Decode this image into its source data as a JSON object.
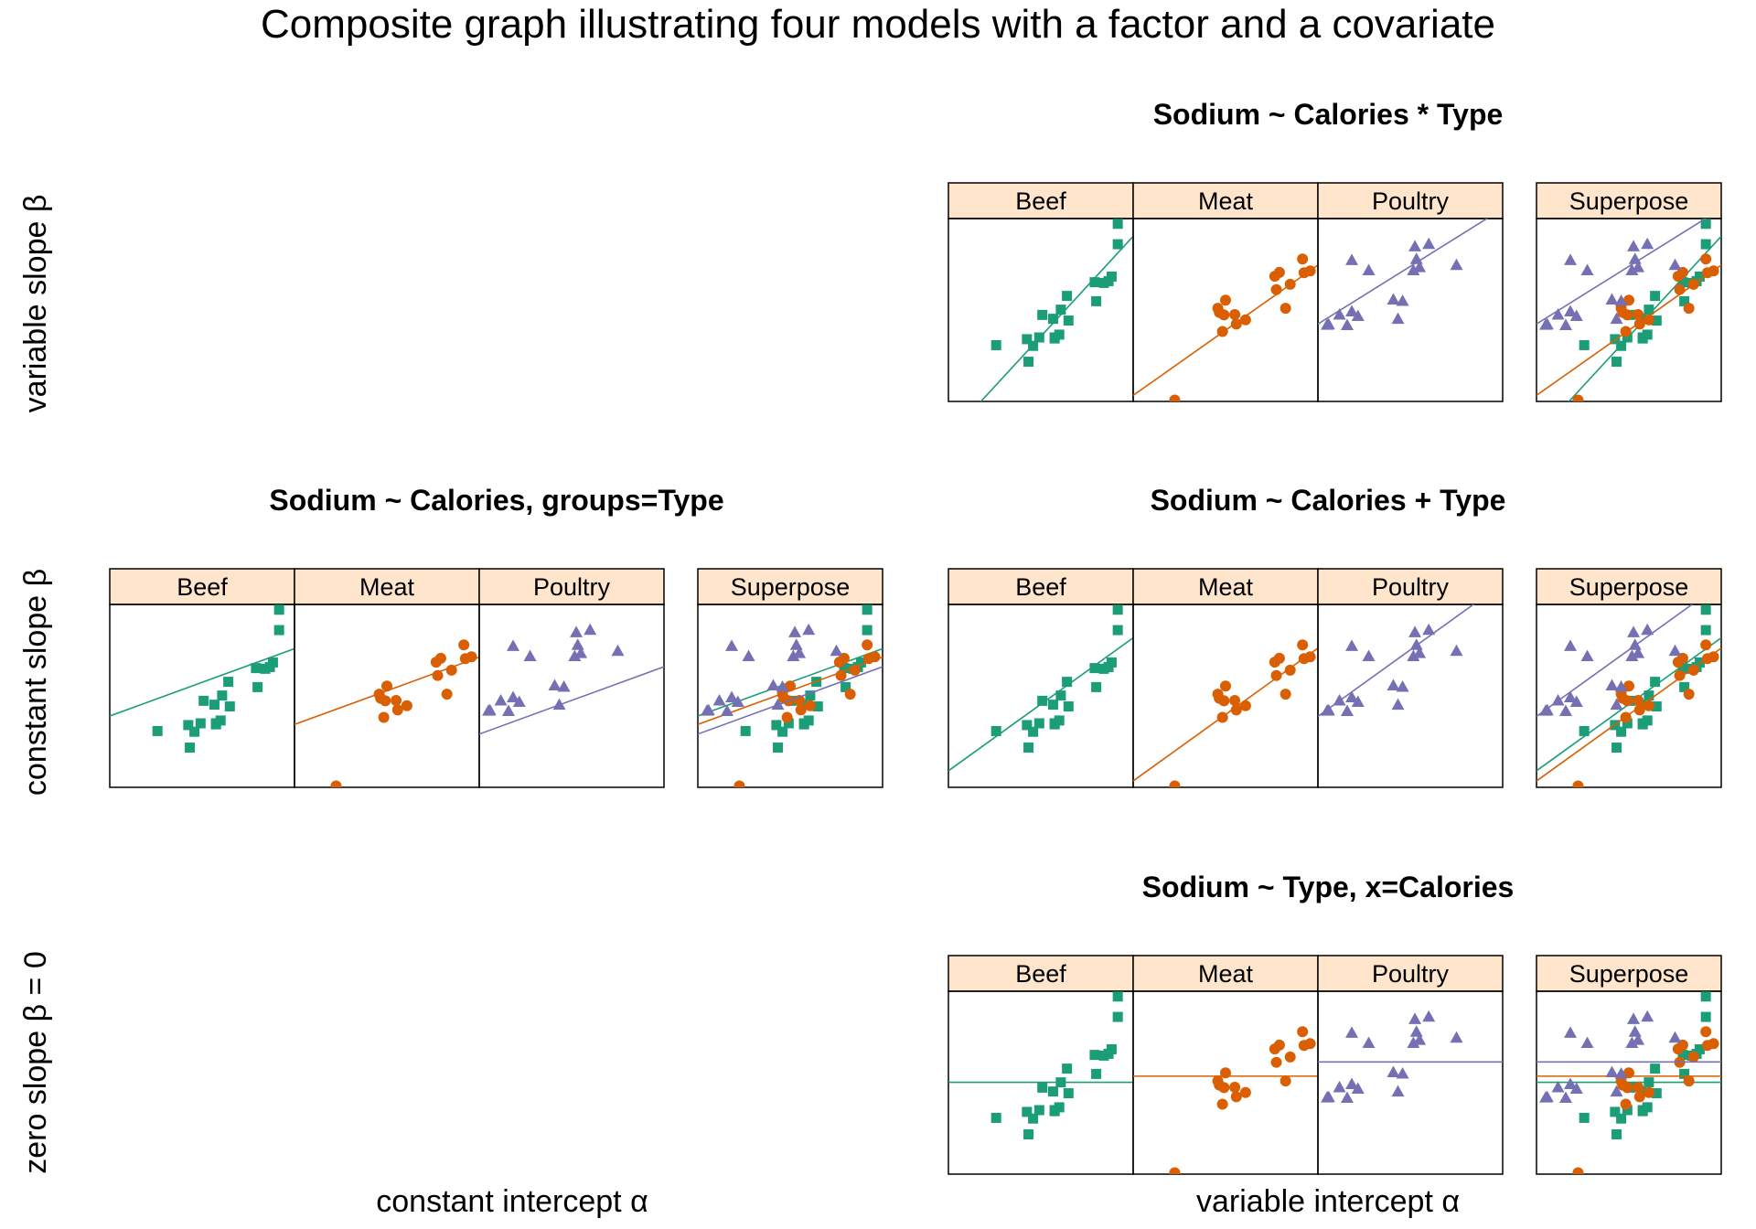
{
  "title": "Composite graph illustrating four models with a factor and a covariate",
  "row_labels": [
    "variable slope β",
    "constant slope β",
    "zero slope β = 0"
  ],
  "col_labels": [
    "constant intercept α",
    "variable intercept α"
  ],
  "colors": {
    "Beef": "#1B9E77",
    "Meat": "#D95F02",
    "Poultry": "#7570B3",
    "strip": "#FFE5CC"
  },
  "chart_data": [
    {
      "type": "scatter",
      "title": "Sodium ~ Calories * Type",
      "position": "variable slope / variable intercept",
      "panels": [
        "Beef",
        "Meat",
        "Poultry",
        "Superpose"
      ],
      "line_model": "separate",
      "xlim": [
        80,
        200
      ],
      "ylim": [
        140,
        660
      ]
    },
    {
      "type": "scatter",
      "title": "Sodium ~ Calories, groups=Type",
      "position": "constant slope / constant intercept",
      "panels": [
        "Beef",
        "Meat",
        "Poultry",
        "Superpose"
      ],
      "line_model": "common",
      "xlim": [
        80,
        200
      ],
      "ylim": [
        140,
        660
      ]
    },
    {
      "type": "scatter",
      "title": "Sodium ~ Calories + Type",
      "position": "constant slope / variable intercept",
      "panels": [
        "Beef",
        "Meat",
        "Poultry",
        "Superpose"
      ],
      "line_model": "parallel",
      "xlim": [
        80,
        200
      ],
      "ylim": [
        140,
        660
      ]
    },
    {
      "type": "scatter",
      "title": "Sodium ~ Type, x=Calories",
      "position": "zero slope / variable intercept",
      "panels": [
        "Beef",
        "Meat",
        "Poultry",
        "Superpose"
      ],
      "line_model": "means",
      "xlim": [
        80,
        200
      ],
      "ylim": [
        140,
        660
      ]
    }
  ],
  "series_data": {
    "Beef": {
      "marker": "square",
      "x": [
        186,
        181,
        176,
        149,
        184,
        190,
        158,
        139,
        175,
        148,
        152,
        111,
        141,
        153,
        190,
        157,
        131,
        149,
        135,
        132
      ],
      "y": [
        495,
        477,
        425,
        322,
        482,
        587,
        370,
        322,
        479,
        375,
        330,
        300,
        386,
        401,
        645,
        440,
        317,
        319,
        298,
        253
      ],
      "fit_separate": {
        "x": [
          80,
          200
        ],
        "y": [
          39.8,
          609.5
        ]
      },
      "fit_common": {
        "x": [
          80,
          200
        ],
        "y": [
          342.7,
          534.3
        ]
      },
      "fit_parallel": {
        "x": [
          80,
          200
        ],
        "y": [
          187.0,
          565.0
        ]
      },
      "fit_mean": 401.2
    },
    "Meat": {
      "marker": "circle",
      "x": [
        173,
        191,
        182,
        190,
        172,
        147,
        146,
        139,
        175,
        136,
        179,
        153,
        107,
        195,
        135,
        140,
        138
      ],
      "y": [
        458,
        506,
        473,
        545,
        496,
        360,
        387,
        386,
        507,
        393,
        405,
        372,
        144,
        511,
        405,
        428,
        339
      ],
      "fit_separate": {
        "x": [
          80,
          200
        ],
        "y": [
          157.2,
          527.7
        ]
      },
      "fit_common": {
        "x": [
          80,
          200
        ],
        "y": [
          318.7,
          510.3
        ]
      },
      "fit_parallel": {
        "x": [
          80,
          200
        ],
        "y": [
          158.1,
          535.8
        ]
      },
      "fit_mean": 418.5
    },
    "Poultry": {
      "marker": "triangle",
      "x": [
        129,
        132,
        102,
        106,
        94,
        102,
        87,
        99,
        170,
        113,
        135,
        142,
        86,
        143,
        152,
        146,
        144
      ],
      "y": [
        430,
        375,
        396,
        383,
        387,
        542,
        359,
        357,
        528,
        513,
        426,
        513,
        358,
        581,
        588,
        522,
        545
      ],
      "fit_separate": {
        "x": [
          80,
          200
        ],
        "y": [
          360.2,
          687.9
        ]
      },
      "fit_common": {
        "x": [
          80,
          200
        ],
        "y": [
          291.3,
          482.9
        ]
      },
      "fit_parallel": {
        "x": [
          80,
          200
        ],
        "y": [
          341.9,
          719.8
        ]
      },
      "fit_mean": 459.0
    }
  }
}
